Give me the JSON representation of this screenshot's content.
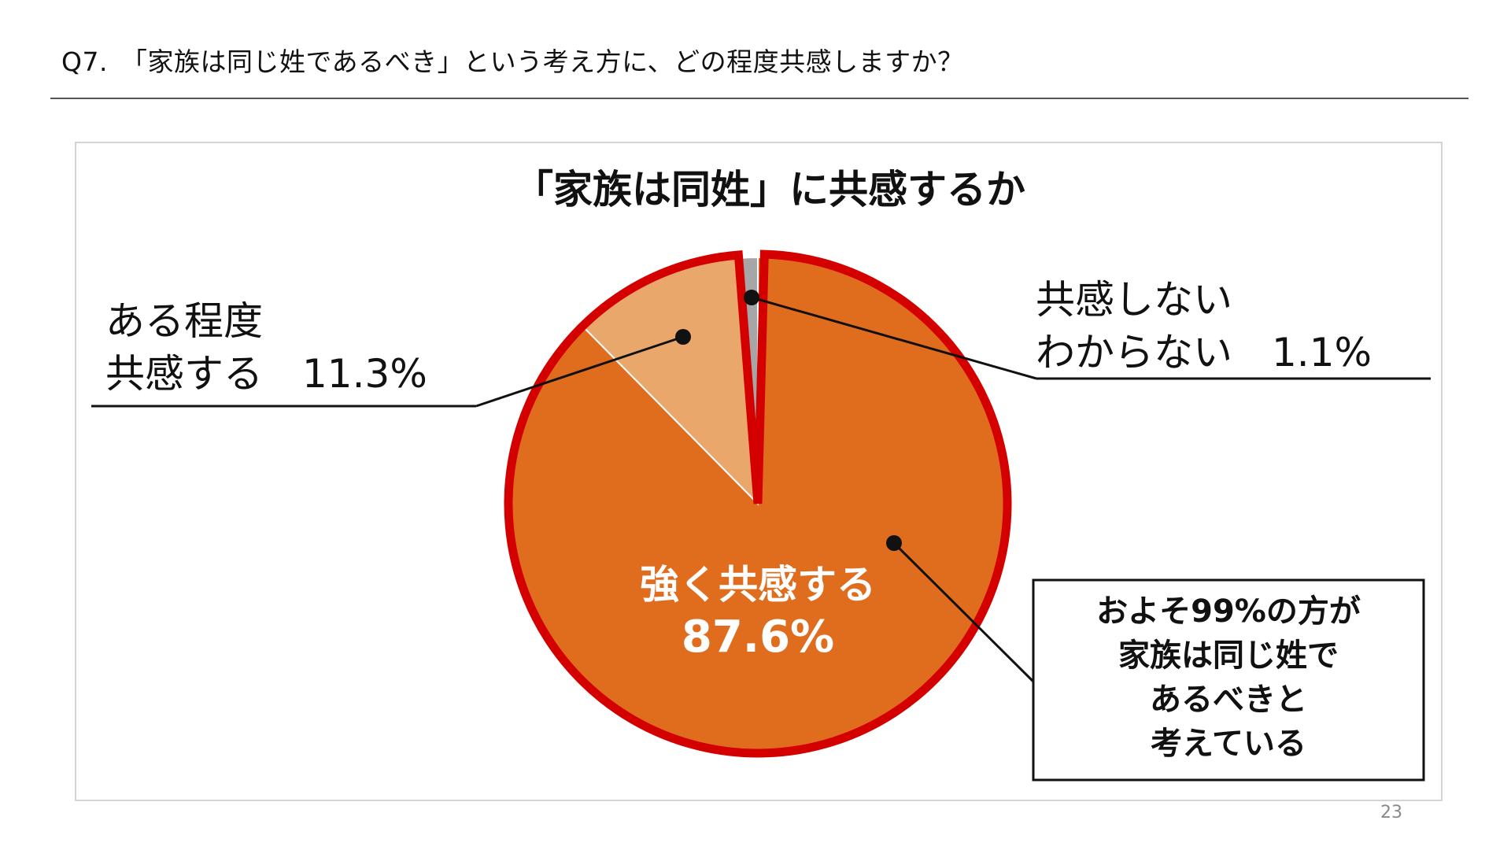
{
  "question": "Q7.　「家族は同じ姓であるべき」という考え方に、どの程度共感しますか？",
  "page_number": "23",
  "chart_data": {
    "type": "pie",
    "title": "「家族は同姓」に共感するか",
    "slices": [
      {
        "label": "強く共感する",
        "value": 87.6,
        "value_label": "87.6%",
        "color": "#e06c1e"
      },
      {
        "label": "ある程度共感する",
        "value": 11.3,
        "value_label": "11.3%",
        "color": "#eaa76c"
      },
      {
        "label": "共感しないわからない",
        "value": 1.1,
        "value_label": "1.1%",
        "color": "#a6a6a6"
      }
    ],
    "label_lines": {
      "strong": [
        "強く共感する",
        "87.6%"
      ],
      "some": [
        "ある程度",
        "共感する　11.3%"
      ],
      "none": [
        "共感しない",
        "わからない　1.1%"
      ]
    },
    "highlight_color": "#d40000",
    "callout": [
      "およそ99%の方が",
      "家族は同じ姓で",
      "あるべきと",
      "考えている"
    ]
  }
}
